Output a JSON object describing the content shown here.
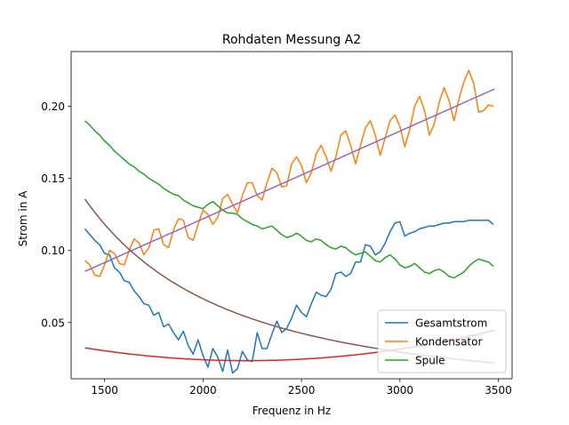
{
  "chart_data": {
    "type": "line",
    "title": "Rohdaten Messung A2",
    "xlabel": "Frequenz in Hz",
    "ylabel": "Strom in A",
    "xlim": [
      1330,
      3570
    ],
    "ylim": [
      0.011,
      0.238
    ],
    "xticks": [
      1500,
      2000,
      2500,
      3000,
      3500
    ],
    "yticks": [
      0.05,
      0.1,
      0.15,
      0.2
    ],
    "ytick_labels": [
      "0.05",
      "0.10",
      "0.15",
      "0.20"
    ],
    "grid": false,
    "legend_position": "lower-right",
    "series": [
      {
        "name": "Gesamtstrom",
        "color": "#1f77b4",
        "legend": true,
        "x": [
          1400,
          1425,
          1450,
          1475,
          1500,
          1525,
          1550,
          1575,
          1600,
          1625,
          1650,
          1675,
          1700,
          1725,
          1750,
          1775,
          1800,
          1825,
          1850,
          1875,
          1900,
          1925,
          1950,
          1975,
          2000,
          2025,
          2050,
          2075,
          2100,
          2125,
          2150,
          2175,
          2200,
          2225,
          2250,
          2275,
          2300,
          2325,
          2350,
          2375,
          2400,
          2425,
          2450,
          2475,
          2500,
          2525,
          2550,
          2575,
          2600,
          2625,
          2650,
          2675,
          2700,
          2725,
          2750,
          2775,
          2800,
          2825,
          2850,
          2875,
          2900,
          2925,
          2950,
          2975,
          3000,
          3025,
          3050,
          3075,
          3100,
          3125,
          3150,
          3175,
          3200,
          3225,
          3250,
          3275,
          3300,
          3325,
          3350,
          3375,
          3400,
          3425,
          3450,
          3475
        ],
        "y": [
          0.115,
          0.111,
          0.107,
          0.104,
          0.098,
          0.097,
          0.088,
          0.085,
          0.079,
          0.078,
          0.072,
          0.068,
          0.063,
          0.062,
          0.055,
          0.057,
          0.047,
          0.049,
          0.043,
          0.038,
          0.044,
          0.034,
          0.028,
          0.038,
          0.027,
          0.019,
          0.032,
          0.026,
          0.016,
          0.031,
          0.015,
          0.018,
          0.03,
          0.024,
          0.023,
          0.043,
          0.032,
          0.032,
          0.042,
          0.051,
          0.043,
          0.046,
          0.053,
          0.062,
          0.057,
          0.054,
          0.063,
          0.071,
          0.069,
          0.068,
          0.073,
          0.084,
          0.085,
          0.082,
          0.084,
          0.092,
          0.092,
          0.104,
          0.103,
          0.097,
          0.099,
          0.105,
          0.113,
          0.119,
          0.12,
          0.11,
          0.112,
          0.113,
          0.115,
          0.116,
          0.117,
          0.117,
          0.118,
          0.119,
          0.119,
          0.12,
          0.12,
          0.12,
          0.121,
          0.121,
          0.121,
          0.121,
          0.121,
          0.118
        ]
      },
      {
        "name": "Kondensator",
        "color": "#ff7f0e",
        "legend": true,
        "x": [
          1400,
          1425,
          1450,
          1475,
          1500,
          1525,
          1550,
          1575,
          1600,
          1625,
          1650,
          1675,
          1700,
          1725,
          1750,
          1775,
          1800,
          1825,
          1850,
          1875,
          1900,
          1925,
          1950,
          1975,
          2000,
          2025,
          2050,
          2075,
          2100,
          2125,
          2150,
          2175,
          2200,
          2225,
          2250,
          2275,
          2300,
          2325,
          2350,
          2375,
          2400,
          2425,
          2450,
          2475,
          2500,
          2525,
          2550,
          2575,
          2600,
          2625,
          2650,
          2675,
          2700,
          2725,
          2750,
          2775,
          2800,
          2825,
          2850,
          2875,
          2900,
          2925,
          2950,
          2975,
          3000,
          3025,
          3050,
          3075,
          3100,
          3125,
          3150,
          3175,
          3200,
          3225,
          3250,
          3275,
          3300,
          3325,
          3350,
          3375,
          3400,
          3425,
          3450,
          3475
        ],
        "y": [
          0.093,
          0.09,
          0.083,
          0.082,
          0.09,
          0.1,
          0.098,
          0.091,
          0.09,
          0.1,
          0.108,
          0.105,
          0.097,
          0.102,
          0.114,
          0.115,
          0.104,
          0.102,
          0.114,
          0.122,
          0.121,
          0.109,
          0.107,
          0.118,
          0.128,
          0.125,
          0.118,
          0.123,
          0.136,
          0.139,
          0.132,
          0.126,
          0.138,
          0.147,
          0.147,
          0.138,
          0.135,
          0.147,
          0.157,
          0.154,
          0.144,
          0.145,
          0.16,
          0.165,
          0.159,
          0.147,
          0.154,
          0.167,
          0.173,
          0.165,
          0.155,
          0.165,
          0.18,
          0.183,
          0.173,
          0.16,
          0.173,
          0.185,
          0.19,
          0.18,
          0.166,
          0.178,
          0.19,
          0.194,
          0.186,
          0.172,
          0.184,
          0.2,
          0.207,
          0.197,
          0.18,
          0.188,
          0.203,
          0.213,
          0.204,
          0.19,
          0.205,
          0.217,
          0.225,
          0.216,
          0.196,
          0.197,
          0.201,
          0.2
        ]
      },
      {
        "name": "Spule",
        "color": "#2ca02c",
        "legend": true,
        "x": [
          1400,
          1425,
          1450,
          1475,
          1500,
          1525,
          1550,
          1575,
          1600,
          1625,
          1650,
          1675,
          1700,
          1725,
          1750,
          1775,
          1800,
          1825,
          1850,
          1875,
          1900,
          1925,
          1950,
          1975,
          2000,
          2025,
          2050,
          2075,
          2100,
          2125,
          2150,
          2175,
          2200,
          2225,
          2250,
          2275,
          2300,
          2325,
          2350,
          2375,
          2400,
          2425,
          2450,
          2475,
          2500,
          2525,
          2550,
          2575,
          2600,
          2625,
          2650,
          2675,
          2700,
          2725,
          2750,
          2775,
          2800,
          2825,
          2850,
          2875,
          2900,
          2925,
          2950,
          2975,
          3000,
          3025,
          3050,
          3075,
          3100,
          3125,
          3150,
          3175,
          3200,
          3225,
          3250,
          3275,
          3300,
          3325,
          3350,
          3375,
          3400,
          3425,
          3450,
          3475
        ],
        "y": [
          0.19,
          0.187,
          0.183,
          0.18,
          0.176,
          0.173,
          0.169,
          0.166,
          0.163,
          0.16,
          0.158,
          0.155,
          0.153,
          0.15,
          0.148,
          0.146,
          0.143,
          0.141,
          0.139,
          0.138,
          0.135,
          0.133,
          0.131,
          0.13,
          0.129,
          0.132,
          0.134,
          0.131,
          0.128,
          0.126,
          0.126,
          0.125,
          0.122,
          0.12,
          0.118,
          0.117,
          0.115,
          0.116,
          0.117,
          0.114,
          0.111,
          0.109,
          0.11,
          0.112,
          0.11,
          0.107,
          0.106,
          0.108,
          0.107,
          0.104,
          0.102,
          0.101,
          0.103,
          0.102,
          0.099,
          0.097,
          0.098,
          0.099,
          0.096,
          0.093,
          0.092,
          0.095,
          0.097,
          0.094,
          0.09,
          0.088,
          0.089,
          0.091,
          0.088,
          0.085,
          0.084,
          0.086,
          0.087,
          0.085,
          0.082,
          0.081,
          0.083,
          0.085,
          0.089,
          0.092,
          0.094,
          0.093,
          0.092,
          0.089
        ]
      },
      {
        "name": "",
        "color": "#d62728",
        "legend": false,
        "fn": "quadratic",
        "coeffs": [
          0.02355,
          2220,
          0.0001325
        ],
        "xrange": [
          1400,
          3480
        ]
      },
      {
        "name": "",
        "color": "#9467bd",
        "legend": false,
        "fn": "linear",
        "coeffs": [
          0.0855,
          6.08e-05,
          1400
        ],
        "xrange": [
          1400,
          3480
        ]
      },
      {
        "name": "",
        "color": "#8c564b",
        "legend": false,
        "fn": "inverse",
        "coeffs": [
          266000
        ],
        "xrange": [
          1400,
          3480
        ]
      }
    ]
  }
}
